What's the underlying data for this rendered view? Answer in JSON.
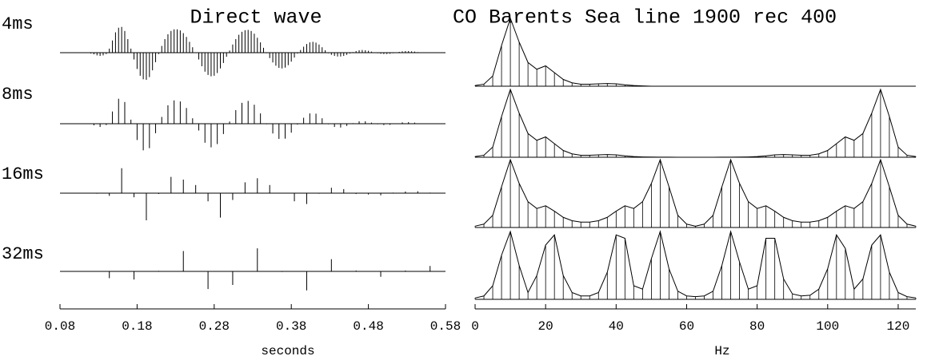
{
  "chart_data": [
    {
      "type": "stem",
      "title": "Direct wave",
      "xlabel": "seconds",
      "color": "#000000",
      "xlim": [
        0.08,
        0.58
      ],
      "xticks": [
        0.08,
        0.18,
        0.28,
        0.38,
        0.48,
        0.58
      ],
      "series": [
        {
          "name": "4ms",
          "x": [
            0.12,
            0.124,
            0.128,
            0.132,
            0.136,
            0.14,
            0.144,
            0.148,
            0.152,
            0.156,
            0.16,
            0.164,
            0.168,
            0.172,
            0.176,
            0.18,
            0.184,
            0.188,
            0.192,
            0.196,
            0.2,
            0.204,
            0.208,
            0.212,
            0.216,
            0.22,
            0.224,
            0.228,
            0.232,
            0.236,
            0.24,
            0.244,
            0.248,
            0.252,
            0.256,
            0.26,
            0.264,
            0.268,
            0.272,
            0.276,
            0.28,
            0.284,
            0.288,
            0.292,
            0.296,
            0.3,
            0.304,
            0.308,
            0.312,
            0.316,
            0.32,
            0.324,
            0.328,
            0.332,
            0.336,
            0.34,
            0.344,
            0.348,
            0.352,
            0.356,
            0.36,
            0.364,
            0.368,
            0.372,
            0.376,
            0.38,
            0.384,
            0.388,
            0.392,
            0.396,
            0.4,
            0.404,
            0.408,
            0.412,
            0.416,
            0.42,
            0.424,
            0.428,
            0.432,
            0.436,
            0.44,
            0.444,
            0.448,
            0.452,
            0.456,
            0.46,
            0.464,
            0.468,
            0.472,
            0.476,
            0.48,
            0.484,
            0.488,
            0.492,
            0.496,
            0.5,
            0.504,
            0.508,
            0.512,
            0.516,
            0.52,
            0.524,
            0.528,
            0.532,
            0.536,
            0.54,
            0.544,
            0.548,
            0.552
          ],
          "values": [
            -0.03,
            -0.06,
            -0.1,
            -0.12,
            -0.1,
            -0.05,
            0.15,
            0.45,
            0.75,
            0.92,
            0.95,
            0.8,
            0.5,
            0.15,
            -0.25,
            -0.6,
            -0.85,
            -0.98,
            -1,
            -0.9,
            -0.65,
            -0.35,
            -0.05,
            0.25,
            0.5,
            0.68,
            0.8,
            0.86,
            0.86,
            0.82,
            0.72,
            0.58,
            0.4,
            0.2,
            0,
            -0.25,
            -0.5,
            -0.7,
            -0.82,
            -0.87,
            -0.85,
            -0.75,
            -0.58,
            -0.38,
            -0.15,
            0.08,
            0.3,
            0.5,
            0.66,
            0.77,
            0.83,
            0.84,
            0.8,
            0.7,
            0.55,
            0.38,
            0.18,
            -0.02,
            -0.2,
            -0.36,
            -0.48,
            -0.56,
            -0.58,
            -0.55,
            -0.46,
            -0.33,
            -0.18,
            -0.03,
            0.1,
            0.22,
            0.32,
            0.38,
            0.4,
            0.37,
            0.3,
            0.2,
            0.09,
            -0.02,
            -0.08,
            -0.12,
            -0.14,
            -0.14,
            -0.12,
            -0.08,
            -0.03,
            0.02,
            0.06,
            0.09,
            0.1,
            0.09,
            0.07,
            0.04,
            0.01,
            -0.02,
            -0.04,
            -0.05,
            -0.05,
            -0.04,
            -0.02,
            0.01,
            0.03,
            0.05,
            0.06,
            0.06,
            0.05,
            0.04,
            0.02,
            0.01,
            0.005
          ]
        },
        {
          "name": "8ms",
          "x": [
            0.124,
            0.132,
            0.14,
            0.148,
            0.156,
            0.164,
            0.172,
            0.18,
            0.188,
            0.196,
            0.204,
            0.212,
            0.22,
            0.228,
            0.236,
            0.244,
            0.252,
            0.26,
            0.268,
            0.276,
            0.284,
            0.292,
            0.3,
            0.308,
            0.316,
            0.324,
            0.332,
            0.34,
            0.348,
            0.356,
            0.364,
            0.372,
            0.38,
            0.388,
            0.396,
            0.404,
            0.412,
            0.42,
            0.428,
            0.436,
            0.444,
            0.452,
            0.46,
            0.468,
            0.476,
            0.484,
            0.492,
            0.5,
            0.508,
            0.516,
            0.524,
            0.532,
            0.54,
            0.548
          ],
          "values": [
            -0.06,
            -0.12,
            -0.05,
            0.45,
            0.92,
            0.8,
            0.15,
            -0.6,
            -0.98,
            -0.9,
            -0.35,
            0.25,
            0.68,
            0.86,
            0.82,
            0.58,
            0.2,
            -0.25,
            -0.7,
            -0.87,
            -0.75,
            -0.38,
            0.08,
            0.5,
            0.77,
            0.84,
            0.7,
            0.38,
            -0.02,
            -0.36,
            -0.56,
            -0.55,
            -0.33,
            -0.03,
            0.22,
            0.38,
            0.37,
            0.2,
            -0.02,
            -0.12,
            -0.14,
            -0.08,
            0.02,
            0.09,
            0.09,
            0.04,
            -0.02,
            -0.05,
            -0.04,
            0.01,
            0.05,
            0.06,
            0.04,
            0.01
          ]
        },
        {
          "name": "16ms",
          "x": [
            0.128,
            0.144,
            0.16,
            0.176,
            0.192,
            0.208,
            0.224,
            0.24,
            0.256,
            0.272,
            0.288,
            0.304,
            0.32,
            0.336,
            0.352,
            0.368,
            0.384,
            0.4,
            0.416,
            0.432,
            0.448,
            0.464,
            0.48,
            0.496,
            0.512,
            0.528,
            0.544,
            0.56
          ],
          "values": [
            -0.02,
            -0.1,
            0.92,
            -0.15,
            -1,
            -0.03,
            0.6,
            0.5,
            0.3,
            -0.3,
            -0.9,
            -0.25,
            0.4,
            0.55,
            0.3,
            0,
            -0.3,
            -0.4,
            -0.02,
            0.2,
            0.15,
            -0.03,
            -0.05,
            -0.08,
            0.02,
            0.06,
            0.07,
            0.02
          ]
        },
        {
          "name": "32ms",
          "x": [
            0.112,
            0.144,
            0.176,
            0.208,
            0.24,
            0.272,
            0.304,
            0.336,
            0.368,
            0.4,
            0.432,
            0.464,
            0.496,
            0.528,
            0.56
          ],
          "values": [
            0.01,
            -0.25,
            -0.3,
            0.02,
            0.75,
            -0.65,
            -0.5,
            0.85,
            -0.02,
            -0.7,
            0.45,
            0.03,
            -0.2,
            0.03,
            0.2
          ]
        }
      ]
    },
    {
      "type": "spectrum",
      "title": "CO Barents Sea line 1900 rec 400",
      "xlabel": "Hz",
      "color": "#000000",
      "xlim": [
        0,
        125
      ],
      "xticks": [
        0,
        20,
        40,
        60,
        80,
        100,
        120
      ],
      "x": [
        0,
        2.5,
        5,
        7.5,
        10,
        12.5,
        15,
        17.5,
        20,
        22.5,
        25,
        27.5,
        30,
        32.5,
        35,
        37.5,
        40,
        42.5,
        45,
        47.5,
        50,
        52.5,
        55,
        57.5,
        60,
        62.5,
        65,
        67.5,
        70,
        72.5,
        75,
        77.5,
        80,
        82.5,
        85,
        87.5,
        90,
        92.5,
        95,
        97.5,
        100,
        102.5,
        105,
        107.5,
        110,
        112.5,
        115,
        117.5,
        120,
        122.5,
        125
      ],
      "series": [
        {
          "values": [
            0.01,
            0.03,
            0.15,
            0.6,
            1,
            0.65,
            0.35,
            0.25,
            0.3,
            0.2,
            0.1,
            0.05,
            0.03,
            0.03,
            0.035,
            0.04,
            0.035,
            0.02,
            0.01,
            0.005,
            0,
            0,
            0,
            0,
            0,
            0,
            0,
            0,
            0,
            0,
            0,
            0,
            0,
            0,
            0,
            0,
            0,
            0,
            0,
            0,
            0,
            0,
            0,
            0,
            0,
            0,
            0,
            0,
            0,
            0,
            0
          ]
        },
        {
          "values": [
            0.01,
            0.03,
            0.15,
            0.6,
            1,
            0.65,
            0.35,
            0.25,
            0.3,
            0.2,
            0.1,
            0.05,
            0.03,
            0.03,
            0.035,
            0.04,
            0.035,
            0.02,
            0.01,
            0.005,
            0.003,
            0.002,
            0.001,
            0,
            0,
            0,
            0,
            0,
            0.001,
            0.002,
            0.003,
            0.005,
            0.01,
            0.02,
            0.035,
            0.04,
            0.035,
            0.03,
            0.03,
            0.05,
            0.1,
            0.2,
            0.3,
            0.25,
            0.35,
            0.65,
            1,
            0.6,
            0.15,
            0.03,
            0.01
          ]
        },
        {
          "values": [
            0.02,
            0.05,
            0.18,
            0.6,
            1,
            0.65,
            0.38,
            0.28,
            0.32,
            0.24,
            0.15,
            0.1,
            0.08,
            0.08,
            0.1,
            0.15,
            0.24,
            0.32,
            0.28,
            0.38,
            0.65,
            1,
            0.6,
            0.18,
            0.05,
            0.02,
            0.05,
            0.18,
            0.6,
            1,
            0.65,
            0.38,
            0.28,
            0.32,
            0.24,
            0.15,
            0.1,
            0.08,
            0.08,
            0.1,
            0.15,
            0.24,
            0.32,
            0.28,
            0.38,
            0.65,
            1,
            0.6,
            0.18,
            0.05,
            0.02
          ]
        },
        {
          "values": [
            0.02,
            0.05,
            0.2,
            0.65,
            1,
            0.5,
            0.1,
            0.35,
            0.8,
            0.95,
            0.35,
            0.1,
            0.05,
            0.05,
            0.1,
            0.4,
            0.95,
            0.9,
            0.2,
            0.15,
            0.6,
            1,
            0.45,
            0.12,
            0.05,
            0.04,
            0.05,
            0.12,
            0.5,
            1,
            0.55,
            0.15,
            0.2,
            0.9,
            0.9,
            0.3,
            0.08,
            0.05,
            0.06,
            0.15,
            0.45,
            0.95,
            0.75,
            0.15,
            0.3,
            0.8,
            0.95,
            0.4,
            0.1,
            0.04,
            0.02
          ]
        }
      ]
    }
  ]
}
